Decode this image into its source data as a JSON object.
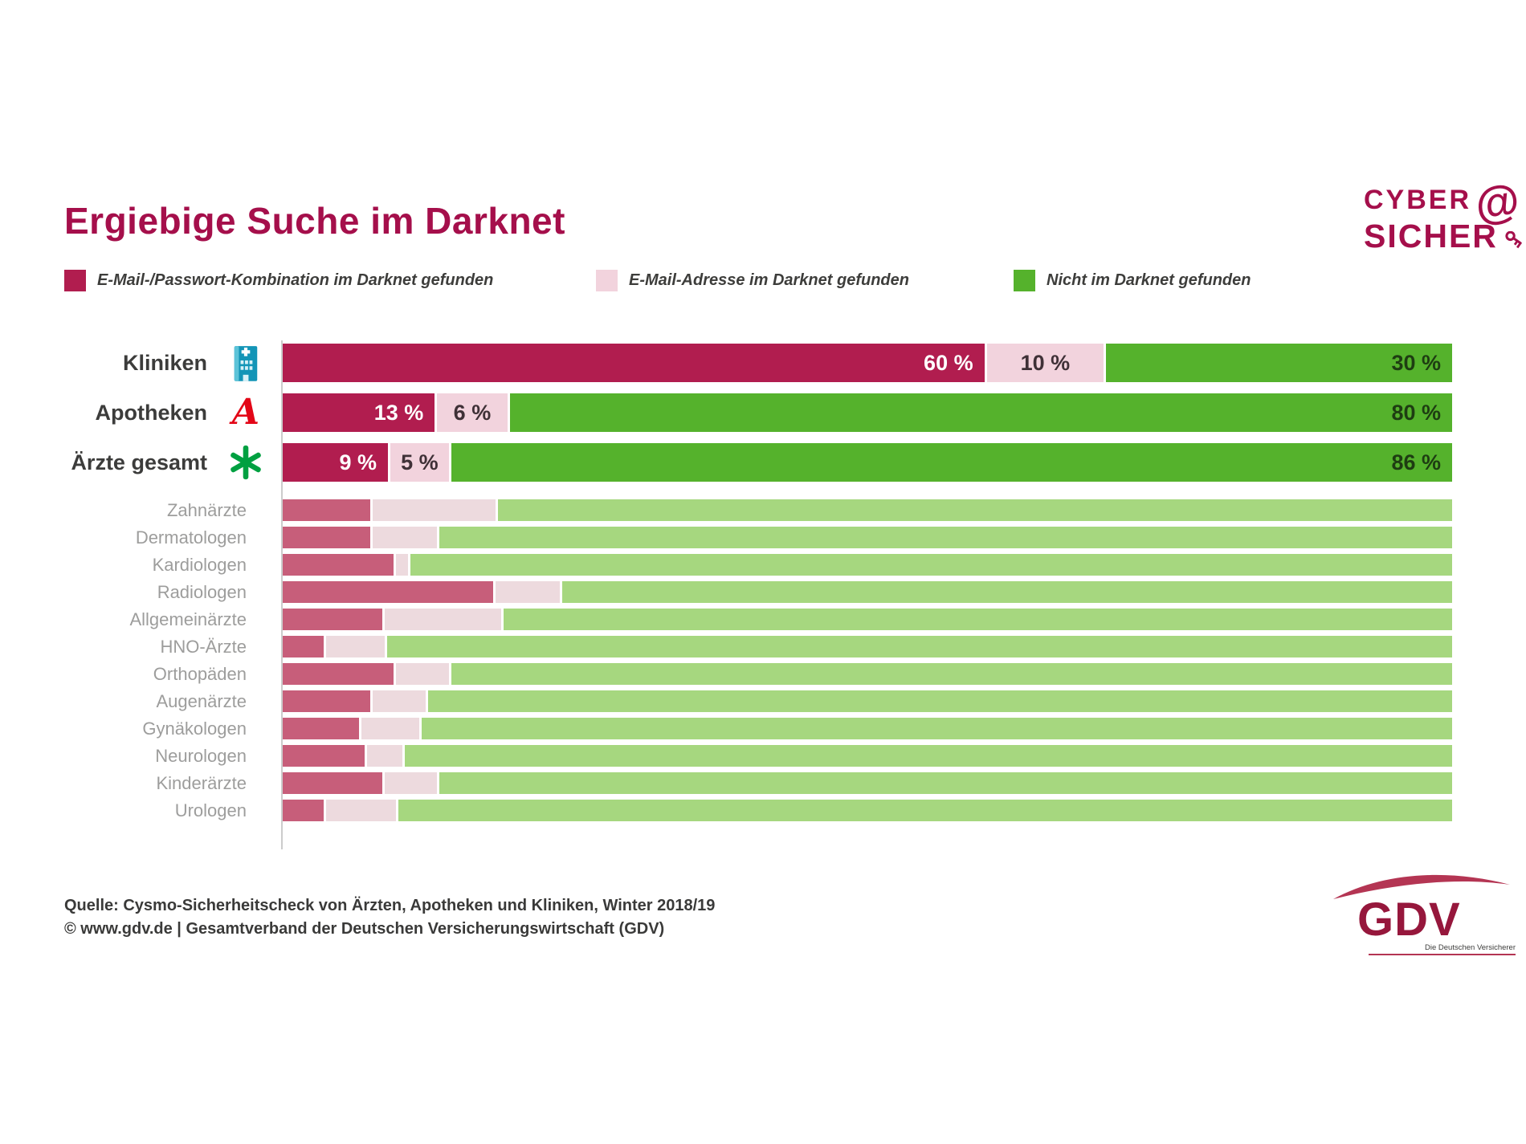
{
  "title": "Ergiebige Suche im Darknet",
  "brand": {
    "line1": "CYBER",
    "line2": "SICHER",
    "color": "#a50f4b"
  },
  "legend": [
    {
      "label": "E-Mail-/Passwort-Kombination im Darknet gefunden",
      "color": "#b11d4f"
    },
    {
      "label": "E-Mail-Adresse im Darknet gefunden",
      "color": "#f2d3dd"
    },
    {
      "label": "Nicht im Darknet gefunden",
      "color": "#55b22c"
    }
  ],
  "chart_data": {
    "type": "bar",
    "orientation": "horizontal",
    "stacked": true,
    "unit": "%",
    "xlim": [
      0,
      100
    ],
    "grid": false,
    "legend_position": "top",
    "series_names": [
      "E-Mail-/Passwort-Kombination im Darknet gefunden",
      "E-Mail-Adresse im Darknet gefunden",
      "Nicht im Darknet gefunden"
    ],
    "main_rows": [
      {
        "label": "Kliniken",
        "icon": "hospital-icon",
        "values": [
          60,
          10,
          30
        ],
        "value_labels": [
          "60 %",
          "10 %",
          "30 %"
        ]
      },
      {
        "label": "Apotheken",
        "icon": "apotheke-icon",
        "values": [
          13,
          6,
          80
        ],
        "value_labels": [
          "13 %",
          "6 %",
          "80 %"
        ]
      },
      {
        "label": "Ärzte gesamt",
        "icon": "star-of-life-icon",
        "values": [
          9,
          5,
          86
        ],
        "value_labels": [
          "9 %",
          "5 %",
          "86 %"
        ]
      }
    ],
    "detail_rows": [
      {
        "label": "Zahnärzte",
        "values": [
          7.5,
          10.5,
          82
        ]
      },
      {
        "label": "Dermatologen",
        "values": [
          7.5,
          5.5,
          87
        ]
      },
      {
        "label": "Kardiologen",
        "values": [
          9.5,
          1,
          89.5
        ]
      },
      {
        "label": "Radiologen",
        "values": [
          18,
          5.5,
          76.5
        ]
      },
      {
        "label": "Allgemeinärzte",
        "values": [
          8.5,
          10,
          81.5
        ]
      },
      {
        "label": "HNO-Ärzte",
        "values": [
          3.5,
          5,
          91.5
        ]
      },
      {
        "label": "Orthopäden",
        "values": [
          9.5,
          4.5,
          86
        ]
      },
      {
        "label": "Augenärzte",
        "values": [
          7.5,
          4.5,
          88
        ]
      },
      {
        "label": "Gynäkologen",
        "values": [
          6.5,
          5,
          88.5
        ]
      },
      {
        "label": "Neurologen",
        "values": [
          7,
          3,
          90
        ]
      },
      {
        "label": "Kinderärzte",
        "values": [
          8.5,
          4.5,
          87
        ]
      },
      {
        "label": "Urologen",
        "values": [
          3.5,
          6,
          90.5
        ]
      }
    ],
    "style": {
      "main_colors": {
        "red": "#b11d4f",
        "pink": "#f2d3dd",
        "green": "#55b22c"
      },
      "detail_colors": {
        "red": "#c75e7a",
        "pink": "#eddade",
        "green": "#a6d77f"
      },
      "label_on_red": "#ffffff",
      "label_on_pink": "#3f3137",
      "label_on_green": "#1e3d12"
    }
  },
  "source": {
    "line1": "Quelle: Cysmo-Sicherheitscheck von Ärzten, Apotheken und Kliniken, Winter 2018/19",
    "line2": "© www.gdv.de | Gesamtverband der Deutschen Versicherungswirtschaft (GDV)"
  },
  "gdv_logo": {
    "text": "GDV",
    "tagline": "Die Deutschen Versicherer"
  }
}
